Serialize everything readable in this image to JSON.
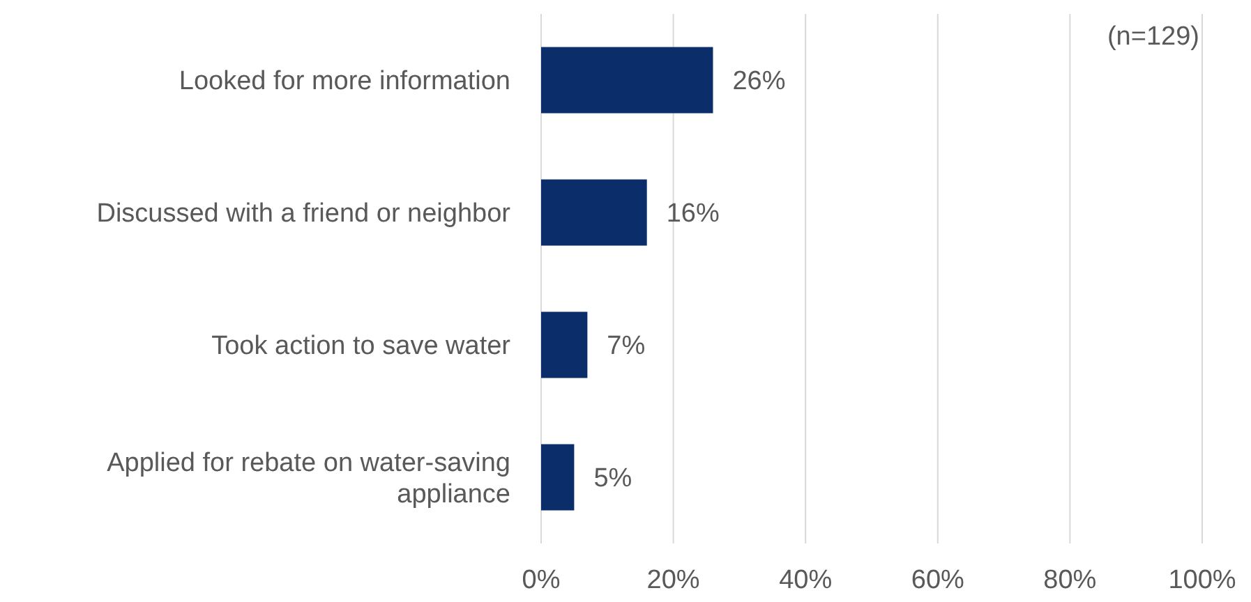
{
  "chart_data": {
    "type": "bar",
    "orientation": "horizontal",
    "categories": [
      "Looked for more information",
      "Discussed with a friend or neighbor",
      "Took action to save water",
      "Applied for rebate on water-saving appliance"
    ],
    "values": [
      26,
      16,
      7,
      5
    ],
    "color": "#0b2e6b",
    "value_labels": [
      "26%",
      "16%",
      "7%",
      "5%"
    ],
    "xlim": [
      0,
      100
    ],
    "xticks": [
      {
        "value": 0,
        "label": "0%"
      },
      {
        "value": 20,
        "label": "20%"
      },
      {
        "value": 40,
        "label": "40%"
      },
      {
        "value": 60,
        "label": "60%"
      },
      {
        "value": 80,
        "label": "80%"
      },
      {
        "value": 100,
        "label": "100%"
      }
    ],
    "grid": "x",
    "annotations": [
      "(n=129)"
    ]
  }
}
